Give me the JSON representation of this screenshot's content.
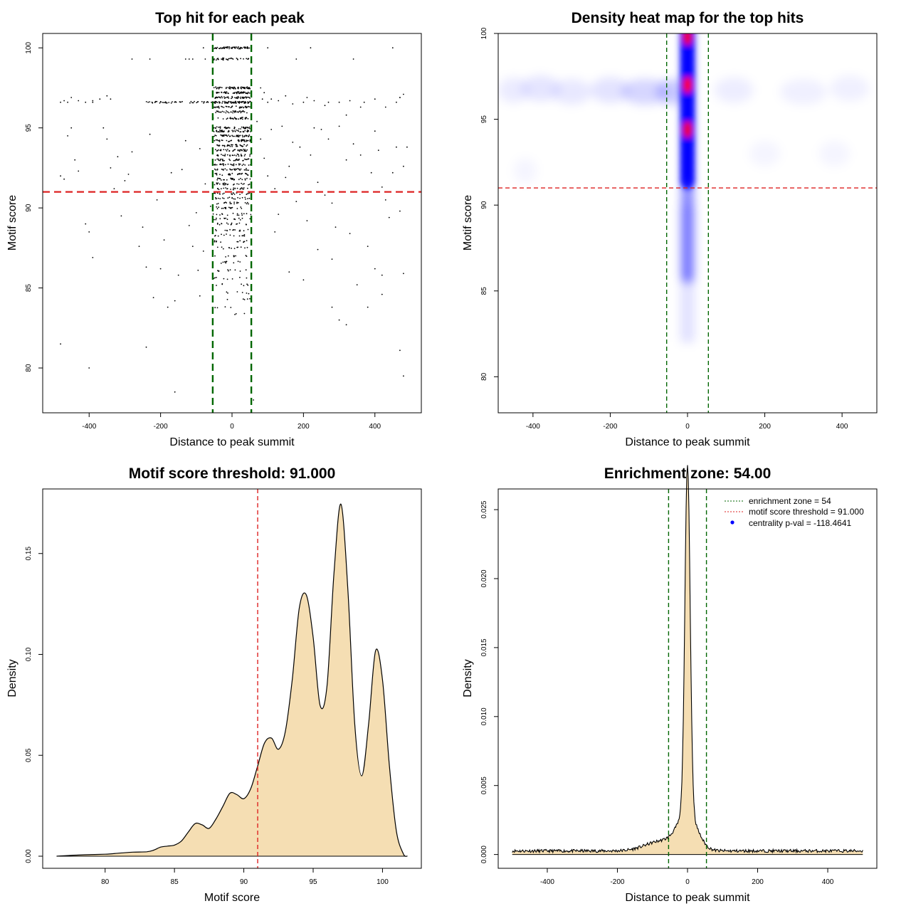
{
  "chart_data": [
    {
      "type": "scatter",
      "title": "Top hit for each peak",
      "xlabel": "Distance to peak summit",
      "ylabel": "Motif score",
      "xlim": [
        -530,
        530
      ],
      "ylim": [
        77.2,
        100.9
      ],
      "xticks": [
        -400,
        -200,
        0,
        200,
        400
      ],
      "xtick_labels": [
        "-400",
        "-200",
        "0",
        "200",
        "400"
      ],
      "yticks": [
        80,
        85,
        90,
        95,
        100
      ],
      "ytick_labels": [
        "80",
        "85",
        "90",
        "95",
        "100"
      ],
      "hline": {
        "y": 91.0,
        "color": "#dd2222"
      },
      "vlines": {
        "x": [
          -54,
          54
        ],
        "color": "#006600"
      },
      "point_color": "#000000",
      "levels": [
        100,
        99.3,
        97.5,
        97.2,
        96.9,
        96.6,
        96.3,
        96.0,
        95.6,
        95.0,
        94.8,
        94.5,
        94.2,
        93.9,
        93.6,
        93.3,
        93.0,
        92.7,
        92.4,
        92.1,
        91.8,
        91.5,
        91.2,
        90.9,
        90.6,
        90.3,
        90.0,
        89.6,
        89.3,
        89.0,
        88.6,
        88.3,
        87.9,
        87.5,
        87.0,
        86.6,
        86.1,
        85.6,
        85.2,
        84.7,
        84.3,
        83.8,
        83.4
      ],
      "level_counts": [
        60,
        30,
        55,
        50,
        45,
        70,
        40,
        35,
        30,
        45,
        40,
        45,
        40,
        35,
        35,
        30,
        30,
        30,
        30,
        28,
        25,
        25,
        22,
        20,
        20,
        18,
        18,
        15,
        15,
        15,
        14,
        13,
        12,
        12,
        10,
        10,
        9,
        8,
        7,
        6,
        5,
        4,
        3
      ],
      "scattered_points": [
        [
          -480,
          96.6
        ],
        [
          -470,
          96.7
        ],
        [
          -460,
          96.6
        ],
        [
          -450,
          96.9
        ],
        [
          -430,
          96.7
        ],
        [
          -410,
          96.6
        ],
        [
          -390,
          96.7
        ],
        [
          -370,
          96.8
        ],
        [
          -350,
          97.0
        ],
        [
          -340,
          96.8
        ],
        [
          -390,
          96.6
        ],
        [
          -480,
          92.0
        ],
        [
          -470,
          91.8
        ],
        [
          -460,
          94.5
        ],
        [
          -450,
          95.0
        ],
        [
          -440,
          93.0
        ],
        [
          -430,
          92.3
        ],
        [
          -420,
          91.0
        ],
        [
          -410,
          89.0
        ],
        [
          -400,
          88.5
        ],
        [
          -390,
          86.9
        ],
        [
          -360,
          95.0
        ],
        [
          -350,
          94.3
        ],
        [
          -340,
          92.5
        ],
        [
          -330,
          91.2
        ],
        [
          -320,
          93.2
        ],
        [
          -310,
          89.5
        ],
        [
          -300,
          91.7
        ],
        [
          -290,
          92.1
        ],
        [
          -280,
          93.5
        ],
        [
          -260,
          87.6
        ],
        [
          -250,
          88.8
        ],
        [
          -240,
          86.3
        ],
        [
          -230,
          94.6
        ],
        [
          -220,
          84.4
        ],
        [
          -210,
          90.5
        ],
        [
          -200,
          86.2
        ],
        [
          -190,
          88.0
        ],
        [
          -170,
          92.2
        ],
        [
          -160,
          84.2
        ],
        [
          -150,
          85.8
        ],
        [
          -140,
          92.4
        ],
        [
          -130,
          94.2
        ],
        [
          -120,
          88.9
        ],
        [
          -110,
          87.6
        ],
        [
          -100,
          89.7
        ],
        [
          -95,
          86.1
        ],
        [
          -90,
          93.7
        ],
        [
          -80,
          87.3
        ],
        [
          -75,
          91.5
        ],
        [
          -60,
          90.1
        ],
        [
          -480,
          81.5
        ],
        [
          -400,
          80.0
        ],
        [
          -240,
          81.3
        ],
        [
          -160,
          78.5
        ],
        [
          -180,
          83.8
        ],
        [
          -90,
          84.5
        ],
        [
          -280,
          99.3
        ],
        [
          -230,
          99.3
        ],
        [
          -130,
          99.3
        ],
        [
          -120,
          99.3
        ],
        [
          -110,
          99.3
        ],
        [
          -80,
          100.0
        ],
        [
          -75,
          99.3
        ],
        [
          80,
          97.5
        ],
        [
          85,
          96.8
        ],
        [
          90,
          97.2
        ],
        [
          100,
          96.6
        ],
        [
          110,
          96.8
        ],
        [
          130,
          96.7
        ],
        [
          150,
          97.0
        ],
        [
          170,
          96.5
        ],
        [
          200,
          96.6
        ],
        [
          210,
          96.9
        ],
        [
          230,
          96.7
        ],
        [
          260,
          96.4
        ],
        [
          270,
          96.6
        ],
        [
          300,
          96.6
        ],
        [
          320,
          95.8
        ],
        [
          330,
          96.7
        ],
        [
          360,
          96.3
        ],
        [
          370,
          96.6
        ],
        [
          400,
          96.8
        ],
        [
          430,
          96.3
        ],
        [
          460,
          96.6
        ],
        [
          470,
          96.9
        ],
        [
          70,
          95.4
        ],
        [
          80,
          94.3
        ],
        [
          90,
          93.1
        ],
        [
          100,
          92.0
        ],
        [
          110,
          94.9
        ],
        [
          120,
          91.2
        ],
        [
          130,
          89.6
        ],
        [
          140,
          95.1
        ],
        [
          150,
          91.9
        ],
        [
          160,
          92.6
        ],
        [
          170,
          94.1
        ],
        [
          180,
          90.4
        ],
        [
          190,
          93.8
        ],
        [
          210,
          89.2
        ],
        [
          220,
          93.3
        ],
        [
          230,
          95.0
        ],
        [
          240,
          91.6
        ],
        [
          250,
          94.9
        ],
        [
          260,
          90.8
        ],
        [
          270,
          94.3
        ],
        [
          280,
          90.3
        ],
        [
          290,
          88.8
        ],
        [
          300,
          95.1
        ],
        [
          320,
          93.0
        ],
        [
          340,
          94.0
        ],
        [
          360,
          93.3
        ],
        [
          380,
          87.6
        ],
        [
          390,
          92.2
        ],
        [
          400,
          94.8
        ],
        [
          410,
          93.6
        ],
        [
          420,
          91.3
        ],
        [
          430,
          90.5
        ],
        [
          440,
          89.4
        ],
        [
          450,
          92.2
        ],
        [
          460,
          93.8
        ],
        [
          470,
          89.8
        ],
        [
          480,
          92.6
        ],
        [
          490,
          93.8
        ],
        [
          120,
          88.5
        ],
        [
          160,
          86.0
        ],
        [
          200,
          85.5
        ],
        [
          240,
          87.4
        ],
        [
          280,
          86.8
        ],
        [
          330,
          88.4
        ],
        [
          350,
          85.2
        ],
        [
          400,
          86.2
        ],
        [
          420,
          85.8
        ],
        [
          480,
          85.9
        ],
        [
          280,
          83.8
        ],
        [
          300,
          83.0
        ],
        [
          320,
          82.7
        ],
        [
          380,
          83.8
        ],
        [
          420,
          84.6
        ],
        [
          470,
          81.1
        ],
        [
          480,
          79.5
        ],
        [
          220,
          100.0
        ],
        [
          180,
          99.3
        ],
        [
          340,
          99.3
        ],
        [
          450,
          100.0
        ],
        [
          480,
          97.1
        ],
        [
          470,
          96.9
        ],
        [
          60,
          78.0
        ],
        [
          100,
          100.0
        ]
      ]
    },
    {
      "type": "heatmap",
      "title": "Density heat map for the top hits",
      "xlabel": "Distance to peak summit",
      "ylabel": "Motif score",
      "xlim": [
        -490,
        490
      ],
      "ylim": [
        77.9,
        100.0
      ],
      "xticks": [
        -400,
        -200,
        0,
        200,
        400
      ],
      "xtick_labels": [
        "-400",
        "-200",
        "0",
        "200",
        "400"
      ],
      "yticks": [
        80,
        85,
        90,
        95,
        100
      ],
      "ytick_labels": [
        "80",
        "85",
        "90",
        "95",
        "100"
      ],
      "hline": {
        "y": 91.0,
        "color": "#dd2222"
      },
      "vlines": {
        "x": [
          -54,
          54
        ],
        "color": "#006600"
      },
      "colors": {
        "low": "#ffffff",
        "mid": "#0000ff",
        "high": "#ff0000"
      },
      "hot_spots": [
        {
          "x": 0,
          "y": 99.8,
          "intensity": 0.95
        },
        {
          "x": 0,
          "y": 97.0,
          "intensity": 1.0
        },
        {
          "x": 0,
          "y": 94.4,
          "intensity": 0.95
        }
      ]
    },
    {
      "type": "area",
      "title": "Motif score threshold: 91.000",
      "xlabel": "Motif score",
      "ylabel": "Density",
      "xlim": [
        75.5,
        102.8
      ],
      "ylim": [
        -0.006,
        0.182
      ],
      "xticks": [
        80,
        85,
        90,
        95,
        100
      ],
      "xtick_labels": [
        "80",
        "85",
        "90",
        "95",
        "100"
      ],
      "yticks": [
        0.0,
        0.05,
        0.1,
        0.15
      ],
      "ytick_labels": [
        "0.00",
        "0.05",
        "0.10",
        "0.15"
      ],
      "fill_color": "#f5deb3",
      "vline": {
        "x": 91.0,
        "color": "#dd2222"
      },
      "x": [
        76.5,
        77.5,
        78.5,
        80,
        81,
        82,
        83,
        83.5,
        84,
        84.5,
        85,
        85.5,
        86,
        86.5,
        87,
        87.5,
        88,
        88.5,
        89,
        89.5,
        90,
        90.5,
        91,
        91.5,
        92,
        92.5,
        93,
        93.5,
        94,
        94.5,
        95,
        95.5,
        96,
        96.5,
        97,
        97.5,
        98,
        98.5,
        99,
        99.5,
        100,
        100.5,
        101,
        101.5,
        101.8
      ],
      "y": [
        0.0,
        0.0004,
        0.0007,
        0.001,
        0.0015,
        0.002,
        0.0022,
        0.003,
        0.0045,
        0.005,
        0.0055,
        0.0075,
        0.012,
        0.0162,
        0.0155,
        0.0138,
        0.0185,
        0.0248,
        0.0312,
        0.0305,
        0.0285,
        0.0335,
        0.0448,
        0.0562,
        0.0585,
        0.053,
        0.062,
        0.088,
        0.123,
        0.1295,
        0.1085,
        0.0748,
        0.0845,
        0.14,
        0.1745,
        0.1325,
        0.0652,
        0.0398,
        0.0655,
        0.1018,
        0.0875,
        0.0445,
        0.0125,
        0.0012,
        0.0
      ]
    },
    {
      "type": "area",
      "title": "Enrichment zone: 54.00",
      "xlabel": "Distance to peak summit",
      "ylabel": "Density",
      "xlim": [
        -540,
        540
      ],
      "ylim": [
        -0.001,
        0.0265
      ],
      "xticks": [
        -400,
        -200,
        0,
        200,
        400
      ],
      "xtick_labels": [
        "-400",
        "-200",
        "0",
        "200",
        "400"
      ],
      "yticks": [
        0.0,
        0.005,
        0.01,
        0.015,
        0.02,
        0.025
      ],
      "ytick_labels": [
        "0.000",
        "0.005",
        "0.010",
        "0.015",
        "0.020",
        "0.025"
      ],
      "fill_color": "#f5deb3",
      "vlines": {
        "x": [
          -54,
          54
        ],
        "color": "#006600"
      },
      "peak": {
        "x": 0,
        "y": 0.0253
      },
      "baseline_density": 0.00015,
      "x_range": [
        -500,
        500
      ],
      "legend": [
        {
          "label": "enrichment zone = 54",
          "color": "#006600",
          "kind": "line"
        },
        {
          "label": "motif score threshold = 91.000",
          "color": "#dd2222",
          "kind": "line"
        },
        {
          "label": "centrality p-val = -118.4641",
          "color": "#0000ff",
          "kind": "point"
        }
      ],
      "legend_position": "top-right"
    }
  ]
}
